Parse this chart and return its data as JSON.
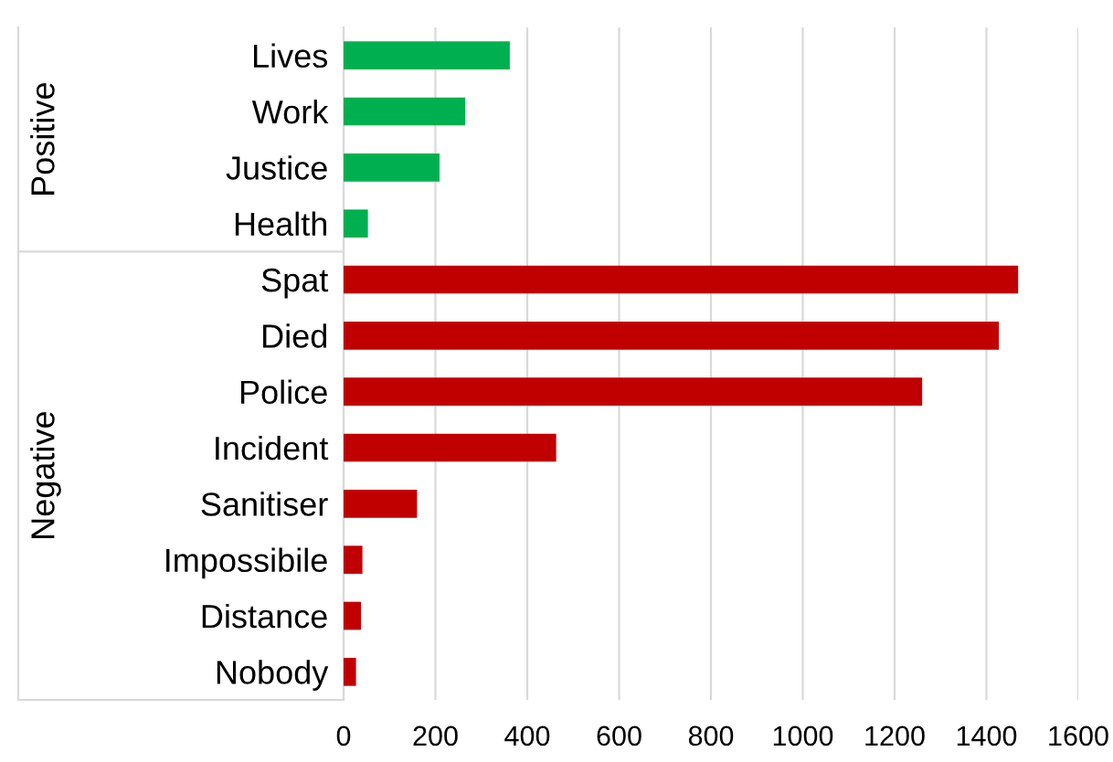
{
  "chart_data": {
    "type": "bar",
    "orientation": "horizontal",
    "categories": [
      "Lives",
      "Work",
      "Justice",
      "Health",
      "Spat",
      "Died",
      "Police",
      "Incident",
      "Sanitiser",
      "Impossibile",
      "Distance",
      "Nobody"
    ],
    "values": [
      362,
      265,
      209,
      53,
      1469,
      1427,
      1260,
      463,
      160,
      41,
      38,
      27
    ],
    "colors": [
      "#00b050",
      "#00b050",
      "#00b050",
      "#00b050",
      "#c00000",
      "#c00000",
      "#c00000",
      "#c00000",
      "#c00000",
      "#c00000",
      "#c00000",
      "#c00000"
    ],
    "annotations": [
      "Positive",
      "Negative"
    ],
    "xlim": [
      0,
      1600
    ],
    "xticks": [
      0,
      200,
      400,
      600,
      800,
      1000,
      1200,
      1400,
      1600
    ],
    "grid": "x",
    "legend": false
  }
}
